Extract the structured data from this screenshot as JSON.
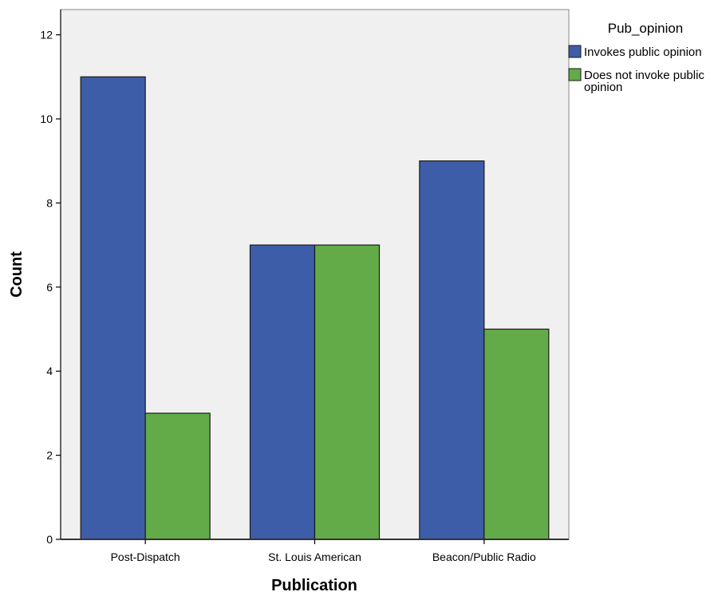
{
  "chart_data": {
    "type": "bar",
    "xlabel": "Publication",
    "ylabel": "Count",
    "categories": [
      "Post-Dispatch",
      "St. Louis American",
      "Beacon/Public Radio"
    ],
    "ylim": [
      0,
      12.6
    ],
    "yticks": [
      0,
      2,
      4,
      6,
      8,
      10,
      12
    ],
    "grid": false,
    "legend": {
      "title": "Pub_opinion",
      "placement": "right",
      "labels": [
        "Invokes public opinion",
        "Does not invoke public opinion"
      ],
      "label_lines": [
        [
          "Invokes public opinion"
        ],
        [
          "Does not invoke public",
          "opinion"
        ]
      ]
    },
    "series": [
      {
        "name": "Invokes public opinion",
        "color": "#3e5da8",
        "values": [
          11,
          7,
          9
        ]
      },
      {
        "name": "Does not invoke public opinion",
        "color": "#62ab48",
        "values": [
          3,
          7,
          5
        ]
      }
    ],
    "plot_background": "#f0f0f0"
  }
}
